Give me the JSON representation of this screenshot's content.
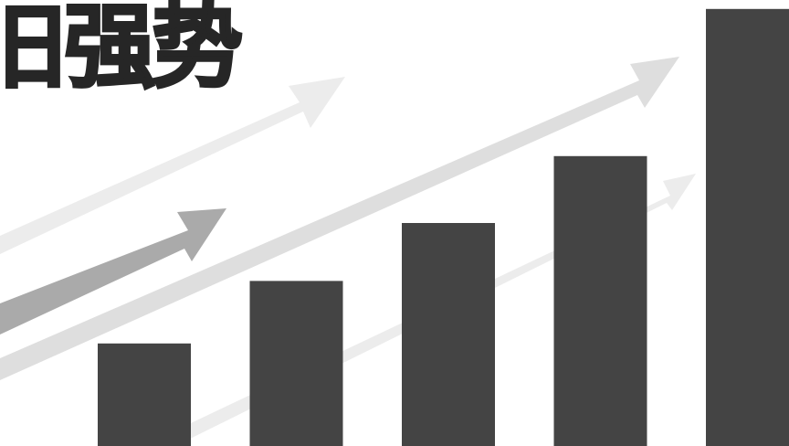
{
  "headline": {
    "text": "旧强势"
  },
  "colors": {
    "bar": "#444444",
    "arrow_faint": "#ececec",
    "arrow_light": "#dedede",
    "arrow_mid": "#aaaaaa",
    "text": "#262626"
  },
  "bars": [
    {
      "level": 0.23
    },
    {
      "level": 0.37
    },
    {
      "level": 0.5
    },
    {
      "level": 0.65
    },
    {
      "level": 0.98
    }
  ]
}
